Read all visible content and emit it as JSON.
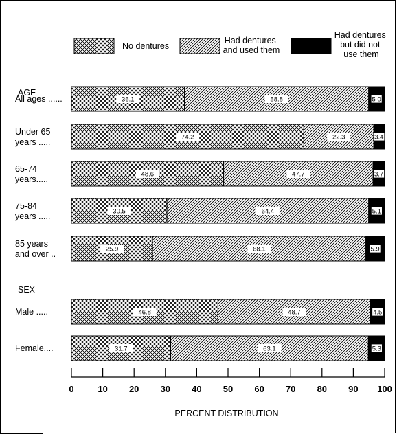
{
  "chart_data": {
    "type": "bar",
    "orientation": "horizontal",
    "stacked": true,
    "title": "",
    "xlabel": "PERCENT DISTRIBUTION",
    "ylabel": "",
    "xlim": [
      0,
      100
    ],
    "xticks": [
      "0",
      "10",
      "20",
      "30",
      "40",
      "50",
      "60",
      "70",
      "80",
      "90",
      "100"
    ],
    "legend_position": "top",
    "series": [
      {
        "name": "No dentures",
        "pattern": "crosshatch",
        "color": "#000000"
      },
      {
        "name": "Had dentures and used them",
        "pattern": "diagonal",
        "color": "#000000"
      },
      {
        "name": "Had dentures but did not use them",
        "pattern": "solid",
        "color": "#000000"
      }
    ],
    "groups": [
      {
        "name": "AGE",
        "categories": [
          {
            "label": "All ages ......",
            "values": [
              36.1,
              58.8,
              5.0
            ],
            "value_labels": [
              "36.1",
              "58.8",
              "5 0"
            ]
          },
          {
            "label": "Under 65 years .....",
            "values": [
              74.2,
              22.3,
              3.4
            ],
            "value_labels": [
              "74.2",
              "22.3",
              "3.4"
            ]
          },
          {
            "label": "65-74 years.....",
            "values": [
              48.6,
              47.7,
              3.7
            ],
            "value_labels": [
              "48.6",
              "47.7",
              "3.7"
            ]
          },
          {
            "label": "75-84 years .....",
            "values": [
              30.5,
              64.4,
              5.1
            ],
            "value_labels": [
              "30.5",
              "64.4",
              "5.1"
            ]
          },
          {
            "label": "85 years and over ..",
            "values": [
              25.9,
              68.1,
              5.9
            ],
            "value_labels": [
              "25.9",
              "68.1",
              "5.9"
            ]
          }
        ]
      },
      {
        "name": "SEX",
        "categories": [
          {
            "label": "Male .....",
            "values": [
              46.8,
              48.7,
              4.5
            ],
            "value_labels": [
              "46.8",
              "48.7",
              "4.5"
            ]
          },
          {
            "label": "Female....",
            "values": [
              31.7,
              63.1,
              5.3
            ],
            "value_labels": [
              "31.7",
              "63.1",
              "5.3"
            ]
          }
        ]
      }
    ]
  },
  "legend": {
    "no_dentures": [
      "No dentures"
    ],
    "had_used": [
      "Had dentures",
      "and used them"
    ],
    "had_not_used": [
      "Had dentures",
      "but did not",
      "use them"
    ]
  }
}
